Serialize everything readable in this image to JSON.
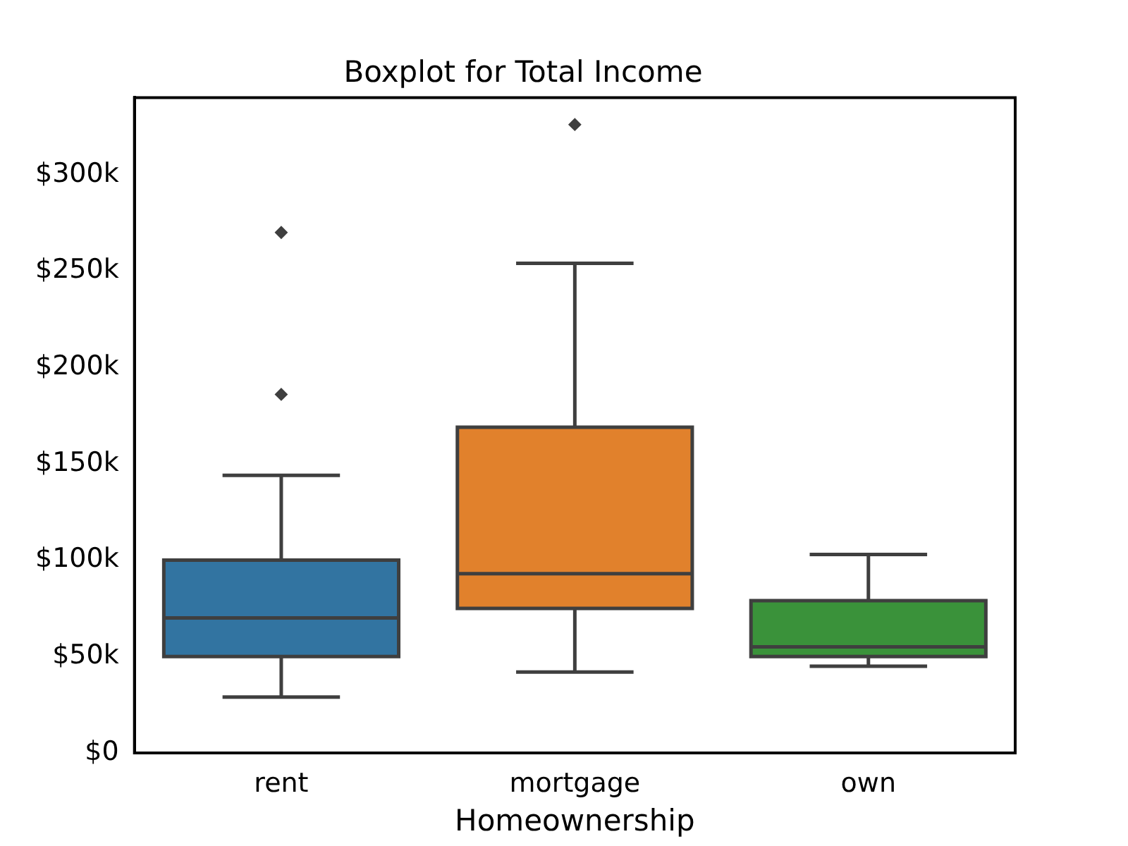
{
  "chart_data": {
    "type": "box",
    "title": "Boxplot for Total Income",
    "xlabel": "Homeownership",
    "categories": [
      "rent",
      "mortgage",
      "own"
    ],
    "colors": [
      "#3274a1",
      "#e1812c",
      "#3a923a"
    ],
    "boxes": [
      {
        "low": 29,
        "q1": 50,
        "median": 70,
        "q3": 100,
        "high": 144,
        "outliers": [
          186,
          270
        ]
      },
      {
        "low": 42,
        "q1": 75,
        "median": 93,
        "q3": 169,
        "high": 254,
        "outliers": [
          326
        ]
      },
      {
        "low": 45,
        "q1": 50,
        "median": 55,
        "q3": 79,
        "high": 103
      }
    ],
    "ylim": [
      0,
      340
    ],
    "yticks": [
      {
        "value": 0,
        "label": "$0"
      },
      {
        "value": 50,
        "label": "$50k"
      },
      {
        "value": 100,
        "label": "$100k"
      },
      {
        "value": 150,
        "label": "$150k"
      },
      {
        "value": 200,
        "label": "$200k"
      },
      {
        "value": 250,
        "label": "$250k"
      },
      {
        "value": 300,
        "label": "$300k"
      }
    ],
    "grid": false,
    "legend": false,
    "marker": "diamond"
  }
}
